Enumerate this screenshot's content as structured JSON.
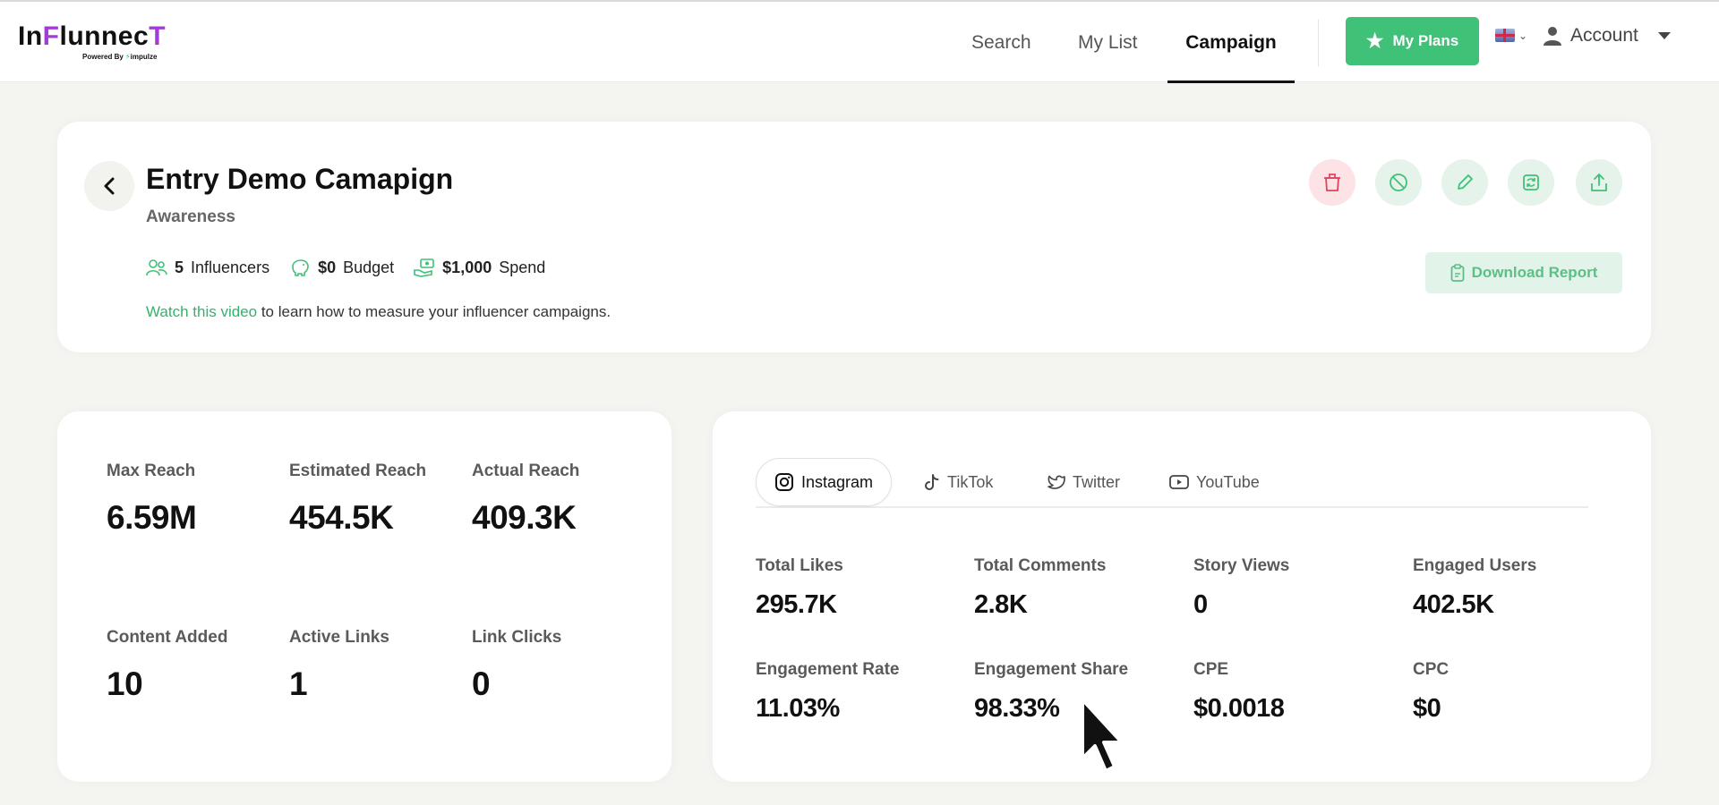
{
  "header": {
    "logo": {
      "text_prefix": "In",
      "text_accent": "F",
      "text_rest": "lunnec",
      "text_end": "T",
      "powered_by": "Powered By",
      "partner": "impulze"
    },
    "nav": [
      {
        "label": "Search",
        "active": false
      },
      {
        "label": "My List",
        "active": false
      },
      {
        "label": "Campaign",
        "active": true
      }
    ],
    "plans_button": "My Plans",
    "language_flag": "uk-flag-icon",
    "account_label": "Account"
  },
  "campaign": {
    "title": "Entry Demo Camapign",
    "objective": "Awareness",
    "influencers_value": "5",
    "influencers_label": "Influencers",
    "budget_value": "$0",
    "budget_label": "Budget",
    "spend_value": "$1,000",
    "spend_label": "Spend",
    "help_link": "Watch this video",
    "help_text": " to learn how to measure your influencer campaigns.",
    "download_button": "Download Report",
    "actions": [
      "delete-icon",
      "block-icon",
      "edit-icon",
      "refresh-icon",
      "share-icon"
    ]
  },
  "reach_metrics": [
    {
      "label": "Max Reach",
      "value": "6.59M"
    },
    {
      "label": "Estimated Reach",
      "value": "454.5K"
    },
    {
      "label": "Actual Reach",
      "value": "409.3K"
    },
    {
      "label": "Content Added",
      "value": "10"
    },
    {
      "label": "Active Links",
      "value": "1"
    },
    {
      "label": "Link Clicks",
      "value": "0"
    }
  ],
  "social": {
    "tabs": [
      {
        "label": "Instagram",
        "icon": "instagram-icon",
        "active": true
      },
      {
        "label": "TikTok",
        "icon": "tiktok-icon",
        "active": false
      },
      {
        "label": "Twitter",
        "icon": "twitter-icon",
        "active": false
      },
      {
        "label": "YouTube",
        "icon": "youtube-icon",
        "active": false
      }
    ],
    "metrics": [
      {
        "label": "Total Likes",
        "value": "295.7K"
      },
      {
        "label": "Total Comments",
        "value": "2.8K"
      },
      {
        "label": "Story Views",
        "value": "0"
      },
      {
        "label": "Engaged Users",
        "value": "402.5K"
      },
      {
        "label": "Engagement Rate",
        "value": "11.03%"
      },
      {
        "label": "Engagement Share",
        "value": "98.33%"
      },
      {
        "label": "CPE",
        "value": "$0.0018"
      },
      {
        "label": "CPC",
        "value": "$0"
      }
    ]
  },
  "colors": {
    "brand_green": "#3fc178",
    "link_green": "#33b36b",
    "logo_purple": "#a23cd6",
    "delete_bg": "#fde3e6",
    "action_bg": "#e5f3ea"
  }
}
